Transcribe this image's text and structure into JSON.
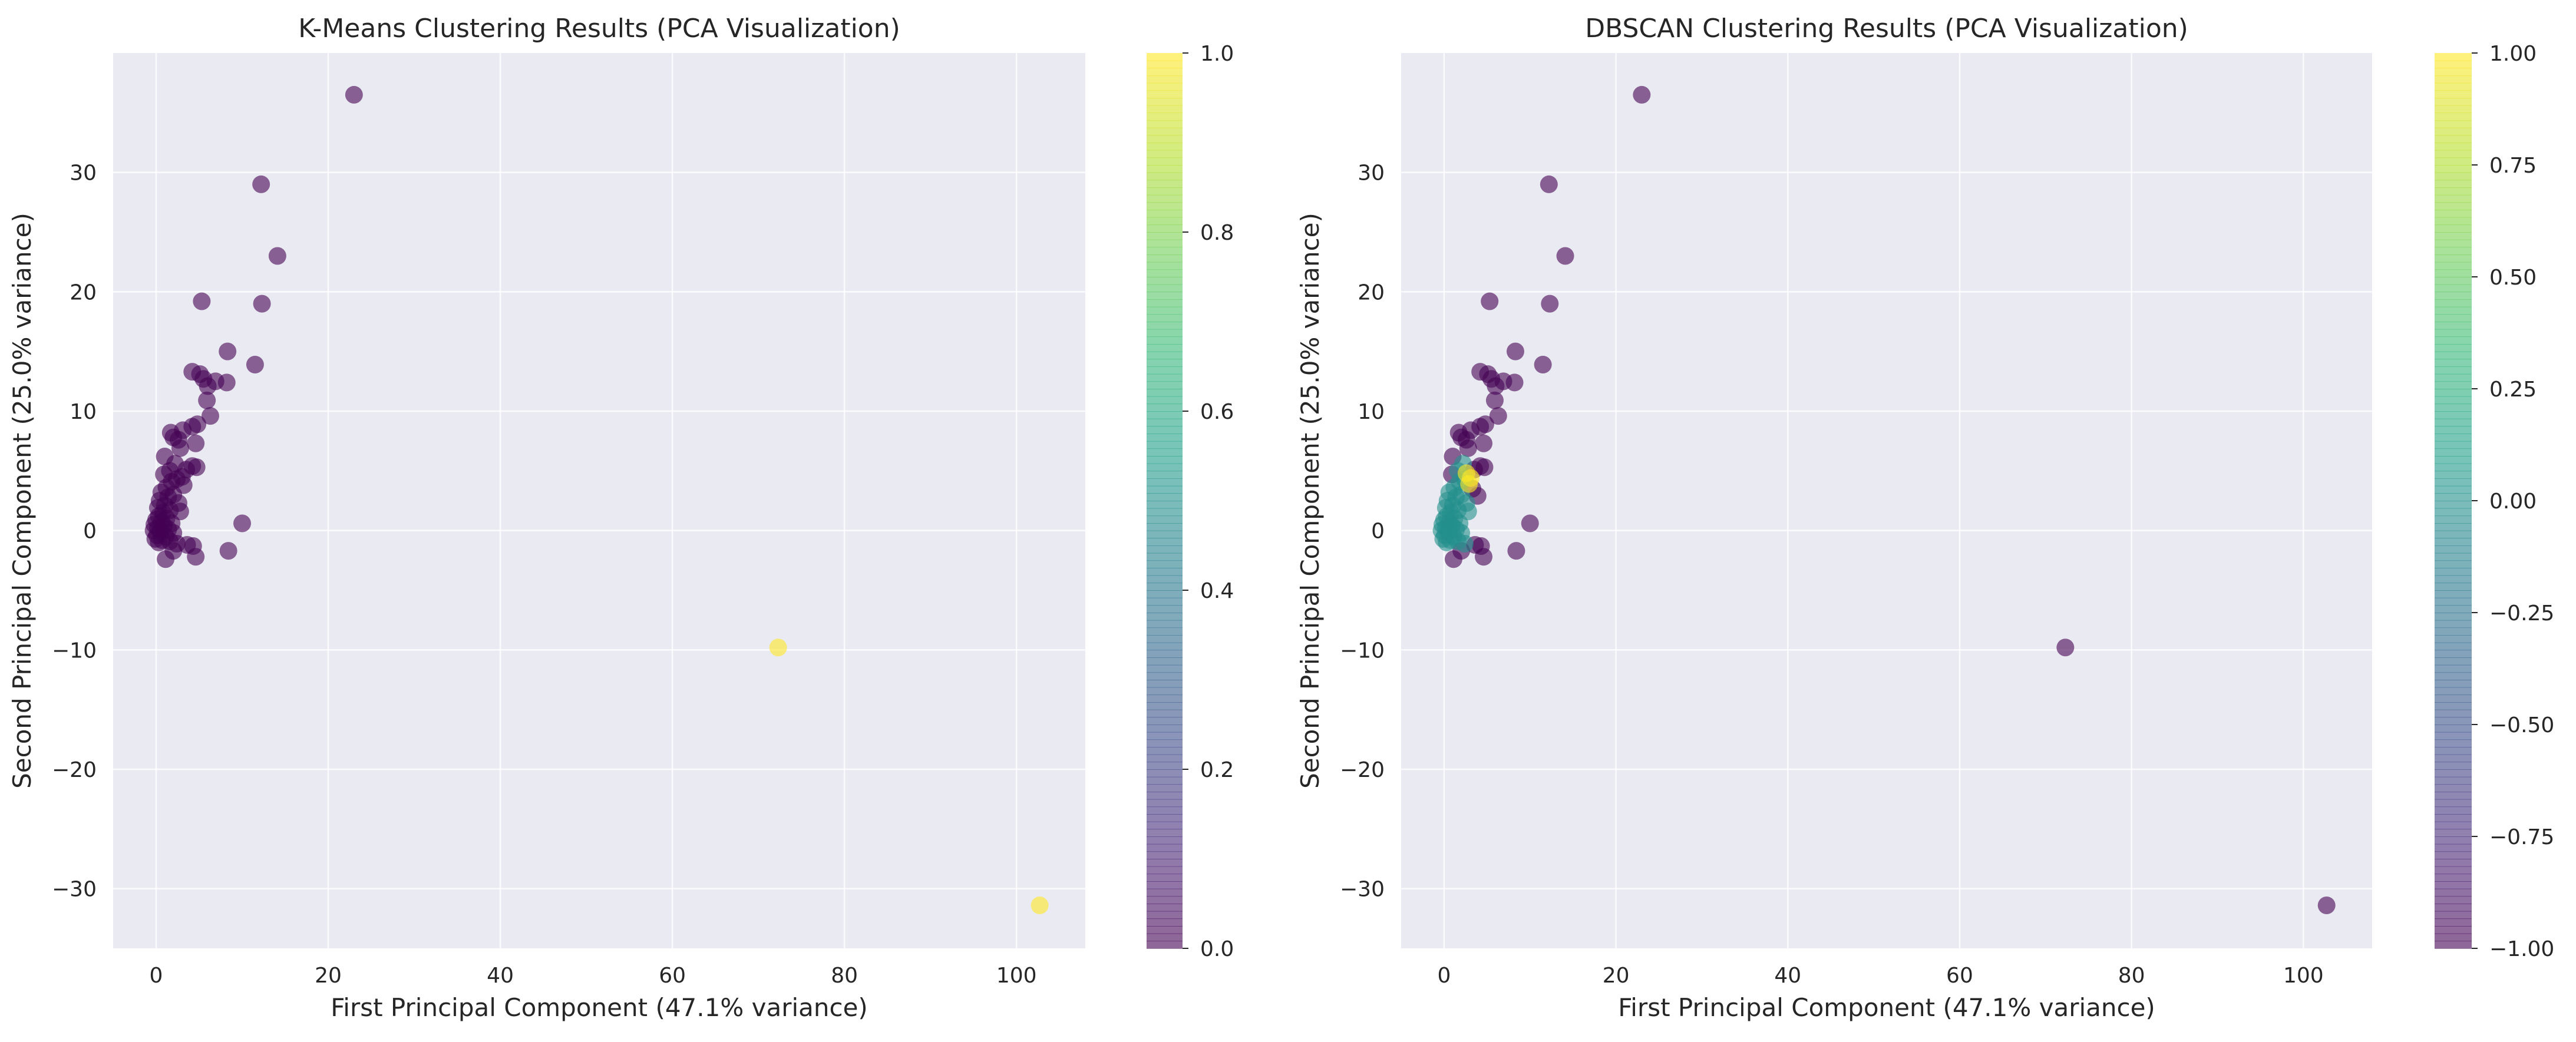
{
  "chart_data": [
    {
      "type": "scatter",
      "title": "K-Means Clustering Results (PCA Visualization)",
      "xlabel": "First Principal Component (47.1% variance)",
      "ylabel": "Second Principal Component (25.0% variance)",
      "xlim": [
        -5,
        108
      ],
      "ylim": [
        -35,
        40
      ],
      "xticks": [
        0,
        20,
        40,
        60,
        80,
        100
      ],
      "yticks": [
        -30,
        -20,
        -10,
        0,
        10,
        20,
        30
      ],
      "grid": true,
      "background": "#eaeaf2",
      "colormap": "viridis",
      "point_alpha": 0.6,
      "colorbar": {
        "min": 0.0,
        "max": 1.0,
        "ticks": [
          0.0,
          0.2,
          0.4,
          0.6,
          0.8,
          1.0
        ],
        "tick_labels": [
          "0.0",
          "0.2",
          "0.4",
          "0.6",
          "0.8",
          "1.0"
        ]
      },
      "points": [
        {
          "x": 23.0,
          "y": 36.5,
          "c": 0
        },
        {
          "x": 12.2,
          "y": 29.0,
          "c": 0
        },
        {
          "x": 14.1,
          "y": 23.0,
          "c": 0
        },
        {
          "x": 5.3,
          "y": 19.2,
          "c": 0
        },
        {
          "x": 12.3,
          "y": 19.0,
          "c": 0
        },
        {
          "x": 8.3,
          "y": 15.0,
          "c": 0
        },
        {
          "x": 11.5,
          "y": 13.9,
          "c": 0
        },
        {
          "x": 4.2,
          "y": 13.3,
          "c": 0
        },
        {
          "x": 5.1,
          "y": 13.1,
          "c": 0
        },
        {
          "x": 5.5,
          "y": 12.7,
          "c": 0
        },
        {
          "x": 6.9,
          "y": 12.5,
          "c": 0
        },
        {
          "x": 8.2,
          "y": 12.4,
          "c": 0
        },
        {
          "x": 6.0,
          "y": 12.1,
          "c": 0
        },
        {
          "x": 5.9,
          "y": 10.9,
          "c": 0
        },
        {
          "x": 6.3,
          "y": 9.6,
          "c": 0
        },
        {
          "x": 4.8,
          "y": 8.9,
          "c": 0
        },
        {
          "x": 4.2,
          "y": 8.7,
          "c": 0
        },
        {
          "x": 3.1,
          "y": 8.4,
          "c": 0
        },
        {
          "x": 1.7,
          "y": 8.2,
          "c": 0
        },
        {
          "x": 2.0,
          "y": 7.8,
          "c": 0
        },
        {
          "x": 2.6,
          "y": 7.6,
          "c": 0
        },
        {
          "x": 4.6,
          "y": 7.3,
          "c": 0
        },
        {
          "x": 2.8,
          "y": 6.9,
          "c": 0
        },
        {
          "x": 1.0,
          "y": 6.2,
          "c": 0
        },
        {
          "x": 2.2,
          "y": 5.6,
          "c": 0
        },
        {
          "x": 4.2,
          "y": 5.4,
          "c": 0
        },
        {
          "x": 4.7,
          "y": 5.3,
          "c": 0
        },
        {
          "x": 3.5,
          "y": 5.1,
          "c": 0
        },
        {
          "x": 1.6,
          "y": 5.0,
          "c": 0
        },
        {
          "x": 0.9,
          "y": 4.7,
          "c": 0
        },
        {
          "x": 3.0,
          "y": 4.5,
          "c": 0
        },
        {
          "x": 2.4,
          "y": 4.3,
          "c": 0
        },
        {
          "x": 1.8,
          "y": 4.1,
          "c": 0
        },
        {
          "x": 3.2,
          "y": 3.8,
          "c": 0
        },
        {
          "x": 1.2,
          "y": 3.6,
          "c": 0
        },
        {
          "x": 0.6,
          "y": 3.2,
          "c": 0
        },
        {
          "x": 2.0,
          "y": 3.0,
          "c": 0
        },
        {
          "x": 1.4,
          "y": 2.8,
          "c": 0
        },
        {
          "x": 0.4,
          "y": 2.5,
          "c": 0
        },
        {
          "x": 2.6,
          "y": 2.3,
          "c": 0
        },
        {
          "x": 1.0,
          "y": 2.1,
          "c": 0
        },
        {
          "x": 0.2,
          "y": 1.9,
          "c": 0
        },
        {
          "x": 1.6,
          "y": 1.7,
          "c": 0
        },
        {
          "x": 0.8,
          "y": 1.5,
          "c": 0
        },
        {
          "x": 2.8,
          "y": 1.6,
          "c": 0
        },
        {
          "x": 0.3,
          "y": 1.2,
          "c": 0
        },
        {
          "x": 1.2,
          "y": 1.0,
          "c": 0
        },
        {
          "x": 0.0,
          "y": 0.9,
          "c": 0
        },
        {
          "x": 0.6,
          "y": 0.7,
          "c": 0
        },
        {
          "x": 1.8,
          "y": 0.6,
          "c": 0
        },
        {
          "x": -0.2,
          "y": 0.5,
          "c": 0
        },
        {
          "x": 0.9,
          "y": 0.4,
          "c": 0
        },
        {
          "x": 0.2,
          "y": 0.2,
          "c": 0
        },
        {
          "x": 1.4,
          "y": 0.1,
          "c": 0
        },
        {
          "x": -0.3,
          "y": 0.0,
          "c": 0
        },
        {
          "x": 0.5,
          "y": -0.1,
          "c": 0
        },
        {
          "x": 2.0,
          "y": -0.2,
          "c": 0
        },
        {
          "x": 0.1,
          "y": -0.4,
          "c": 0
        },
        {
          "x": 1.1,
          "y": -0.5,
          "c": 0
        },
        {
          "x": -0.1,
          "y": -0.7,
          "c": 0
        },
        {
          "x": 0.7,
          "y": -0.8,
          "c": 0
        },
        {
          "x": 1.6,
          "y": -0.9,
          "c": 0
        },
        {
          "x": 0.3,
          "y": -1.0,
          "c": 0
        },
        {
          "x": 2.4,
          "y": -1.1,
          "c": 0
        },
        {
          "x": 3.6,
          "y": -1.2,
          "c": 0
        },
        {
          "x": 4.3,
          "y": -1.3,
          "c": 0
        },
        {
          "x": 2.0,
          "y": -1.7,
          "c": 0
        },
        {
          "x": 4.6,
          "y": -2.2,
          "c": 0
        },
        {
          "x": 1.1,
          "y": -2.4,
          "c": 0
        },
        {
          "x": 10.0,
          "y": 0.6,
          "c": 0
        },
        {
          "x": 8.4,
          "y": -1.7,
          "c": 0
        },
        {
          "x": 72.3,
          "y": -9.8,
          "c": 1
        },
        {
          "x": 102.7,
          "y": -31.4,
          "c": 1
        }
      ]
    },
    {
      "type": "scatter",
      "title": "DBSCAN Clustering Results (PCA Visualization)",
      "xlabel": "First Principal Component (47.1% variance)",
      "ylabel": "Second Principal Component (25.0% variance)",
      "xlim": [
        -5,
        108
      ],
      "ylim": [
        -35,
        40
      ],
      "xticks": [
        0,
        20,
        40,
        60,
        80,
        100
      ],
      "yticks": [
        -30,
        -20,
        -10,
        0,
        10,
        20,
        30
      ],
      "grid": true,
      "background": "#eaeaf2",
      "colormap": "viridis",
      "point_alpha": 0.6,
      "colorbar": {
        "min": -1.0,
        "max": 1.0,
        "ticks": [
          -1.0,
          -0.75,
          -0.5,
          -0.25,
          0.0,
          0.25,
          0.5,
          0.75,
          1.0
        ],
        "tick_labels": [
          "−1.00",
          "−0.75",
          "−0.50",
          "−0.25",
          "0.00",
          "0.25",
          "0.50",
          "0.75",
          "1.00"
        ]
      },
      "points": [
        {
          "x": 23.0,
          "y": 36.5,
          "c": -1
        },
        {
          "x": 12.2,
          "y": 29.0,
          "c": -1
        },
        {
          "x": 14.1,
          "y": 23.0,
          "c": -1
        },
        {
          "x": 5.3,
          "y": 19.2,
          "c": -1
        },
        {
          "x": 12.3,
          "y": 19.0,
          "c": -1
        },
        {
          "x": 8.3,
          "y": 15.0,
          "c": -1
        },
        {
          "x": 11.5,
          "y": 13.9,
          "c": -1
        },
        {
          "x": 4.2,
          "y": 13.3,
          "c": -1
        },
        {
          "x": 5.1,
          "y": 13.1,
          "c": -1
        },
        {
          "x": 5.5,
          "y": 12.7,
          "c": -1
        },
        {
          "x": 6.9,
          "y": 12.5,
          "c": -1
        },
        {
          "x": 8.2,
          "y": 12.4,
          "c": -1
        },
        {
          "x": 6.0,
          "y": 12.1,
          "c": -1
        },
        {
          "x": 5.9,
          "y": 10.9,
          "c": -1
        },
        {
          "x": 6.3,
          "y": 9.6,
          "c": -1
        },
        {
          "x": 4.8,
          "y": 8.9,
          "c": -1
        },
        {
          "x": 4.2,
          "y": 8.7,
          "c": -1
        },
        {
          "x": 3.1,
          "y": 8.4,
          "c": -1
        },
        {
          "x": 1.7,
          "y": 8.2,
          "c": -1
        },
        {
          "x": 2.0,
          "y": 7.8,
          "c": -1
        },
        {
          "x": 2.6,
          "y": 7.6,
          "c": -1
        },
        {
          "x": 4.6,
          "y": 7.3,
          "c": -1
        },
        {
          "x": 2.8,
          "y": 6.9,
          "c": -1
        },
        {
          "x": 4.2,
          "y": 5.4,
          "c": -1
        },
        {
          "x": 4.7,
          "y": 5.3,
          "c": -1
        },
        {
          "x": 3.5,
          "y": 5.1,
          "c": -1
        },
        {
          "x": 1.0,
          "y": 6.2,
          "c": -1
        },
        {
          "x": 3.9,
          "y": 2.9,
          "c": -1
        },
        {
          "x": 3.6,
          "y": -1.2,
          "c": -1
        },
        {
          "x": 4.3,
          "y": -1.3,
          "c": -1
        },
        {
          "x": 2.0,
          "y": -1.7,
          "c": -1
        },
        {
          "x": 4.6,
          "y": -2.2,
          "c": -1
        },
        {
          "x": 1.1,
          "y": -2.4,
          "c": -1
        },
        {
          "x": 10.0,
          "y": 0.6,
          "c": -1
        },
        {
          "x": 8.4,
          "y": -1.7,
          "c": -1
        },
        {
          "x": 72.3,
          "y": -9.8,
          "c": -1
        },
        {
          "x": 102.7,
          "y": -31.4,
          "c": -1
        },
        {
          "x": 0.9,
          "y": 4.7,
          "c": -1
        },
        {
          "x": 3.3,
          "y": 3.5,
          "c": -1
        },
        {
          "x": 1.6,
          "y": 5.0,
          "c": 0
        },
        {
          "x": 2.2,
          "y": 5.6,
          "c": 0
        },
        {
          "x": 1.8,
          "y": 4.1,
          "c": 0
        },
        {
          "x": 2.4,
          "y": 4.3,
          "c": 0
        },
        {
          "x": 1.2,
          "y": 3.6,
          "c": 0
        },
        {
          "x": 0.6,
          "y": 3.2,
          "c": 0
        },
        {
          "x": 2.0,
          "y": 3.0,
          "c": 0
        },
        {
          "x": 1.4,
          "y": 2.8,
          "c": 0
        },
        {
          "x": 0.4,
          "y": 2.5,
          "c": 0
        },
        {
          "x": 2.6,
          "y": 2.3,
          "c": 0
        },
        {
          "x": 1.0,
          "y": 2.1,
          "c": 0
        },
        {
          "x": 0.2,
          "y": 1.9,
          "c": 0
        },
        {
          "x": 1.6,
          "y": 1.7,
          "c": 0
        },
        {
          "x": 0.8,
          "y": 1.5,
          "c": 0
        },
        {
          "x": 2.8,
          "y": 1.6,
          "c": 0
        },
        {
          "x": 0.3,
          "y": 1.2,
          "c": 0
        },
        {
          "x": 1.2,
          "y": 1.0,
          "c": 0
        },
        {
          "x": 0.0,
          "y": 0.9,
          "c": 0
        },
        {
          "x": 0.6,
          "y": 0.7,
          "c": 0
        },
        {
          "x": 1.8,
          "y": 0.6,
          "c": 0
        },
        {
          "x": -0.2,
          "y": 0.5,
          "c": 0
        },
        {
          "x": 0.9,
          "y": 0.4,
          "c": 0
        },
        {
          "x": 0.2,
          "y": 0.2,
          "c": 0
        },
        {
          "x": 1.4,
          "y": 0.1,
          "c": 0
        },
        {
          "x": -0.3,
          "y": 0.0,
          "c": 0
        },
        {
          "x": 0.5,
          "y": -0.1,
          "c": 0
        },
        {
          "x": 2.0,
          "y": -0.2,
          "c": 0
        },
        {
          "x": 0.1,
          "y": -0.4,
          "c": 0
        },
        {
          "x": 1.1,
          "y": -0.5,
          "c": 0
        },
        {
          "x": -0.1,
          "y": -0.7,
          "c": 0
        },
        {
          "x": 0.7,
          "y": -0.8,
          "c": 0
        },
        {
          "x": 1.6,
          "y": -0.9,
          "c": 0
        },
        {
          "x": 0.3,
          "y": -1.0,
          "c": 0
        },
        {
          "x": 2.4,
          "y": -1.1,
          "c": 0
        },
        {
          "x": 2.6,
          "y": 4.8,
          "c": 1
        },
        {
          "x": 3.1,
          "y": 4.4,
          "c": 1
        },
        {
          "x": 2.9,
          "y": 3.9,
          "c": 1
        }
      ]
    }
  ]
}
